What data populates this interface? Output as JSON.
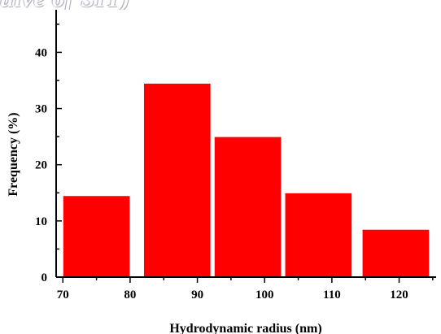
{
  "banner_text": "ulve of SIT)",
  "chart_data": {
    "type": "bar",
    "title": "",
    "xlabel": "Hydrodynamic radius (nm)",
    "ylabel": "Frequency (%)",
    "bars": [
      {
        "x_start": 70,
        "x_end": 80,
        "value": 14.5
      },
      {
        "x_start": 82,
        "x_end": 92,
        "value": 34.5
      },
      {
        "x_start": 92.5,
        "x_end": 102.5,
        "value": 25
      },
      {
        "x_start": 103,
        "x_end": 113,
        "value": 15
      },
      {
        "x_start": 114.5,
        "x_end": 124.5,
        "value": 8.5
      }
    ],
    "xlim": [
      69,
      125.5
    ],
    "ylim": [
      0,
      47
    ],
    "x_ticks": [
      "70",
      "80",
      "90",
      "100",
      "110",
      "120"
    ],
    "y_ticks": [
      "0",
      "10",
      "20",
      "30",
      "40"
    ],
    "bar_color": "#ff0000",
    "bar_edge_color": "#ffffff",
    "grid": false,
    "legend": "none"
  }
}
